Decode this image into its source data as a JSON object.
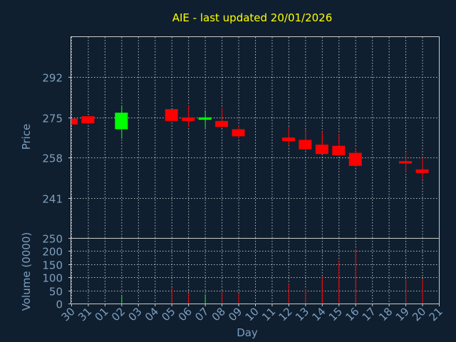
{
  "chart_data": {
    "type": "candlestick",
    "title": "AIE - last updated 20/01/2026",
    "colors": {
      "up": "#00ff00",
      "down": "#ff0000",
      "background": "#0f1f2f",
      "text": "#7f9fbf",
      "title": "#ffff00"
    },
    "grid": true,
    "x_ticks": [
      "30",
      "31",
      "01",
      "02",
      "03",
      "04",
      "05",
      "06",
      "07",
      "08",
      "09",
      "10",
      "11",
      "12",
      "13",
      "14",
      "15",
      "16",
      "17",
      "18",
      "19",
      "20",
      "21"
    ],
    "price_panel": {
      "ylabel": "Price",
      "ylim": [
        224,
        309
      ],
      "y_ticks": [
        241,
        258,
        275,
        292
      ]
    },
    "volume_panel": {
      "ylabel": "Volume (0000)",
      "ylim": [
        0,
        250
      ],
      "y_ticks": [
        0,
        50,
        100,
        150,
        200,
        250
      ]
    },
    "xlabel": "Day",
    "candles": [
      {
        "day": "30",
        "open": 274.5,
        "high": 274.5,
        "low": 272.0,
        "close": 272.0,
        "volume": 0
      },
      {
        "day": "31",
        "open": 275.5,
        "high": 275.5,
        "low": 272.5,
        "close": 272.5,
        "volume": 0
      },
      {
        "day": "02",
        "open": 270.0,
        "high": 280.0,
        "low": 266.0,
        "close": 277.0,
        "volume": 30
      },
      {
        "day": "05",
        "open": 278.5,
        "high": 278.5,
        "low": 273.5,
        "close": 273.5,
        "volume": 62
      },
      {
        "day": "06",
        "open": 275.0,
        "high": 280.0,
        "low": 271.0,
        "close": 273.5,
        "volume": 40
      },
      {
        "day": "07",
        "open": 274.0,
        "high": 278.0,
        "low": 270.5,
        "close": 275.0,
        "volume": 35
      },
      {
        "day": "08",
        "open": 273.5,
        "high": 279.0,
        "low": 270.5,
        "close": 271.0,
        "volume": 45
      },
      {
        "day": "09",
        "open": 270.0,
        "high": 271.5,
        "low": 266.5,
        "close": 267.0,
        "volume": 40
      },
      {
        "day": "12",
        "open": 266.5,
        "high": 271.0,
        "low": 263.0,
        "close": 265.0,
        "volume": 75
      },
      {
        "day": "13",
        "open": 265.5,
        "high": 270.0,
        "low": 261.0,
        "close": 261.5,
        "volume": 55
      },
      {
        "day": "14",
        "open": 263.5,
        "high": 269.0,
        "low": 259.5,
        "close": 259.5,
        "volume": 100
      },
      {
        "day": "15",
        "open": 263.0,
        "high": 268.0,
        "low": 259.0,
        "close": 259.0,
        "volume": 165
      },
      {
        "day": "16",
        "open": 260.0,
        "high": 262.0,
        "low": 254.0,
        "close": 254.5,
        "volume": 208
      },
      {
        "day": "19",
        "open": 256.5,
        "high": 260.0,
        "low": 252.0,
        "close": 255.5,
        "volume": 90
      },
      {
        "day": "20",
        "open": 253.0,
        "high": 258.0,
        "low": 249.0,
        "close": 251.5,
        "volume": 95
      }
    ]
  }
}
